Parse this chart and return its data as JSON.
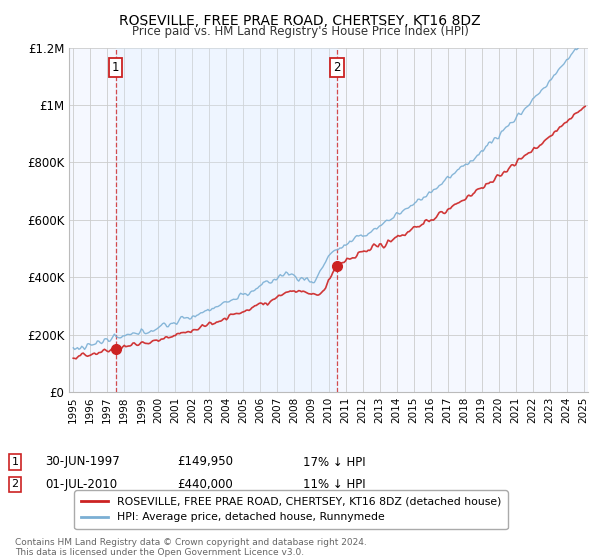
{
  "title": "ROSEVILLE, FREE PRAE ROAD, CHERTSEY, KT16 8DZ",
  "subtitle": "Price paid vs. HM Land Registry's House Price Index (HPI)",
  "xlim_start": 1994.75,
  "xlim_end": 2025.25,
  "ylim": [
    0,
    1200000
  ],
  "yticks": [
    0,
    200000,
    400000,
    600000,
    800000,
    1000000,
    1200000
  ],
  "ytick_labels": [
    "£0",
    "£200K",
    "£400K",
    "£600K",
    "£800K",
    "£1M",
    "£1.2M"
  ],
  "hpi_color": "#7bafd4",
  "price_color": "#cc2222",
  "sale1_x": 1997.5,
  "sale1_y": 149950,
  "sale2_x": 2010.5,
  "sale2_y": 440000,
  "shade_color": "#ddeeff",
  "legend_line1": "ROSEVILLE, FREE PRAE ROAD, CHERTSEY, KT16 8DZ (detached house)",
  "legend_line2": "HPI: Average price, detached house, Runnymede",
  "annot1_date": "30-JUN-1997",
  "annot1_price": "£149,950",
  "annot1_hpi": "17% ↓ HPI",
  "annot2_date": "01-JUL-2010",
  "annot2_price": "£440,000",
  "annot2_hpi": "11% ↓ HPI",
  "footer": "Contains HM Land Registry data © Crown copyright and database right 2024.\nThis data is licensed under the Open Government Licence v3.0.",
  "background_color": "#f5f8ff",
  "grid_color": "#cccccc"
}
